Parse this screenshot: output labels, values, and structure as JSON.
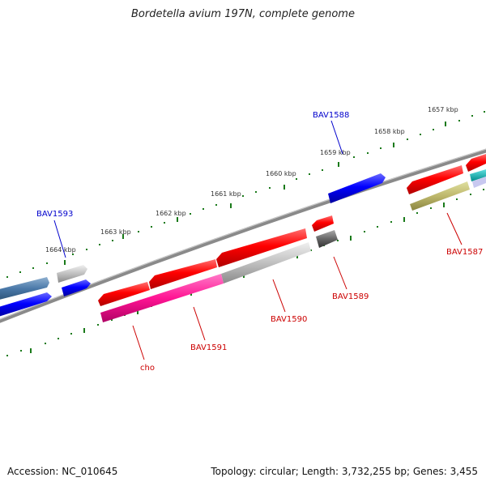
{
  "title": "Bordetella avium 197N, complete genome",
  "footer": {
    "accession": "Accession: NC_010645",
    "summary": "Topology: circular; Length: 3,732,255 bp; Genes: 3,455"
  },
  "scale_labels": [
    "1657 kbp",
    "1658 kbp",
    "1659 kbp",
    "1660 kbp",
    "1661 kbp",
    "1662 kbp",
    "1663 kbp",
    "1664 kbp"
  ],
  "gene_labels": {
    "bav1588": "BAV1588",
    "bav1593": "BAV1593",
    "bav1587": "BAV1587",
    "bav1589": "BAV1589",
    "bav1590": "BAV1590",
    "bav1591": "BAV1591",
    "cho": "cho"
  },
  "colors": {
    "forward_label": "#0000cc",
    "reverse_label": "#cc0000",
    "tick": "#1a7a1a",
    "backbone": "#777777"
  }
}
